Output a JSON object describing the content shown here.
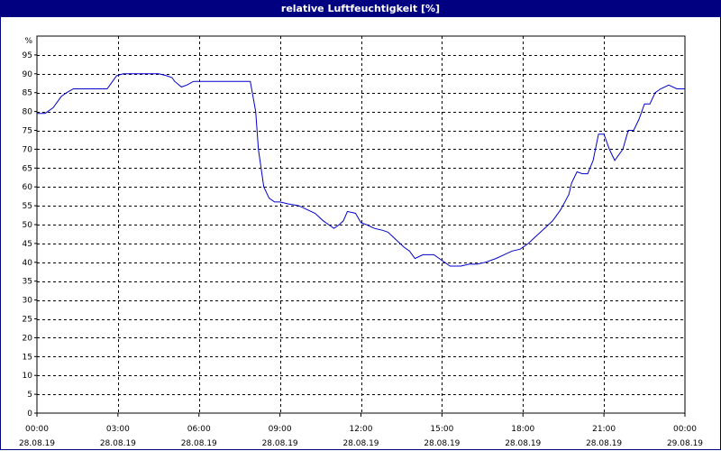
{
  "chart_data": {
    "type": "line",
    "title": "relative Luftfeuchtigkeit [%]",
    "ylabel": "%",
    "ylim": [
      0,
      100
    ],
    "yticks": [
      0,
      5,
      10,
      15,
      20,
      25,
      30,
      35,
      40,
      45,
      50,
      55,
      60,
      65,
      70,
      75,
      80,
      85,
      90,
      95
    ],
    "xlim": [
      0,
      24
    ],
    "xticks": [
      {
        "x": 0,
        "time": "00:00",
        "date": "28.08.19"
      },
      {
        "x": 3,
        "time": "03:00",
        "date": "28.08.19"
      },
      {
        "x": 6,
        "time": "06:00",
        "date": "28.08.19"
      },
      {
        "x": 9,
        "time": "09:00",
        "date": "28.08.19"
      },
      {
        "x": 12,
        "time": "12:00",
        "date": "28.08.19"
      },
      {
        "x": 15,
        "time": "15:00",
        "date": "28.08.19"
      },
      {
        "x": 18,
        "time": "18:00",
        "date": "28.08.19"
      },
      {
        "x": 21,
        "time": "21:00",
        "date": "28.08.19"
      },
      {
        "x": 24,
        "time": "00:00",
        "date": "29.08.19"
      }
    ],
    "grid": true,
    "line_color": "#0000cc",
    "series": [
      {
        "name": "",
        "x": [
          0,
          0.3,
          0.6,
          0.9,
          1.1,
          1.35,
          1.7,
          2.2,
          2.6,
          2.8,
          2.95,
          3.2,
          3.6,
          4.0,
          4.5,
          4.8,
          5.0,
          5.1,
          5.35,
          5.55,
          5.8,
          6.0,
          6.5,
          7.0,
          7.5,
          7.7,
          7.9,
          8.1,
          8.2,
          8.4,
          8.6,
          8.8,
          9.0,
          9.3,
          9.7,
          10.0,
          10.3,
          10.6,
          10.8,
          11.0,
          11.2,
          11.35,
          11.5,
          11.8,
          12.0,
          12.2,
          12.5,
          12.8,
          13.0,
          13.3,
          13.6,
          13.8,
          14.0,
          14.3,
          14.5,
          14.7,
          14.9,
          15.1,
          15.3,
          15.5,
          15.7,
          16.0,
          16.3,
          16.6,
          17.0,
          17.3,
          17.6,
          17.9,
          18.2,
          18.5,
          18.8,
          19.1,
          19.4,
          19.7,
          19.8,
          20.0,
          20.2,
          20.4,
          20.6,
          20.8,
          21.0,
          21.2,
          21.4,
          21.7,
          21.9,
          22.1,
          22.3,
          22.5,
          22.7,
          22.9,
          23.1,
          23.4,
          23.7,
          24.0
        ],
        "values": [
          79.5,
          79.5,
          81,
          84,
          85,
          86,
          86,
          86,
          86,
          88,
          89.5,
          90,
          90,
          90,
          90,
          89.5,
          89,
          88,
          86.5,
          87,
          88,
          88,
          88,
          88,
          88,
          88,
          88,
          80,
          70,
          60,
          57,
          56,
          56,
          55.5,
          55,
          54,
          53,
          51,
          50,
          49,
          50,
          51,
          53.5,
          53,
          50.5,
          50,
          49,
          48.5,
          48,
          46,
          44,
          43,
          41,
          42,
          42,
          42,
          41,
          40,
          39,
          39,
          39,
          39.5,
          39.5,
          40,
          41,
          42,
          43,
          43.5,
          45,
          47,
          49,
          51,
          54,
          58,
          61,
          64,
          63.5,
          63.5,
          67,
          74,
          74,
          70,
          67,
          70,
          75,
          75,
          78,
          82,
          82,
          85,
          86,
          87,
          86,
          86
        ]
      }
    ]
  }
}
